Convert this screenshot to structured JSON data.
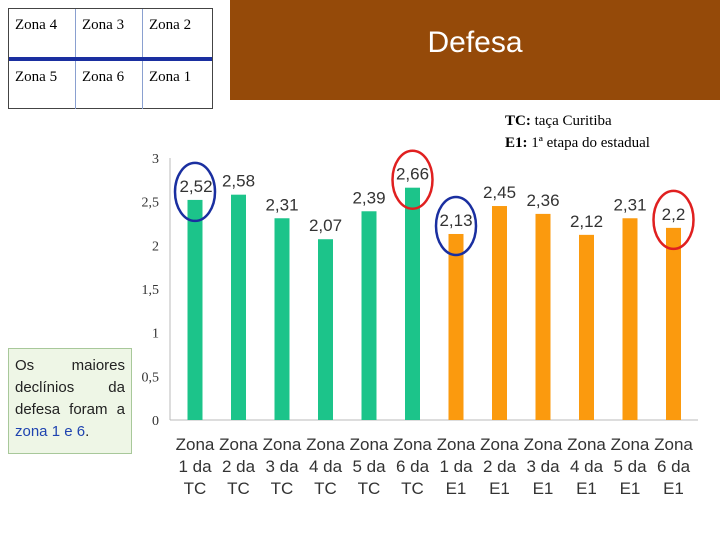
{
  "zone_grid": {
    "top_row": [
      "Zona 4",
      "Zona 3",
      "Zona 2"
    ],
    "bottom_row": [
      "Zona 5",
      "Zona 6",
      "Zona 1"
    ]
  },
  "banner": {
    "title": "Defesa",
    "color": "#954a09"
  },
  "legend_note": {
    "line1_key": "TC:",
    "line1_text": "taça Curitiba",
    "line2_key": "E1:",
    "line2_text": "1ª etapa do estadual"
  },
  "callout": {
    "text_before": "Os maiores declínios da defesa foram a ",
    "highlight": "zona 1 e 6",
    "text_after": "."
  },
  "chart_data": {
    "type": "bar",
    "categories": [
      "Zona 1 da TC",
      "Zona 2 da TC",
      "Zona 3 da TC",
      "Zona 4 da TC",
      "Zona 5 da TC",
      "Zona 6 da TC",
      "Zona 1 da E1",
      "Zona 2 da E1",
      "Zona 3 da E1",
      "Zona 4 da E1",
      "Zona 5 da E1",
      "Zona 6 da E1"
    ],
    "category_lines": [
      [
        "Zona",
        "1 da",
        "TC"
      ],
      [
        "Zona",
        "2 da",
        "TC"
      ],
      [
        "Zona",
        "3 da",
        "TC"
      ],
      [
        "Zona",
        "4 da",
        "TC"
      ],
      [
        "Zona",
        "5 da",
        "TC"
      ],
      [
        "Zona",
        "6 da",
        "TC"
      ],
      [
        "Zona",
        "1 da",
        "E1"
      ],
      [
        "Zona",
        "2 da",
        "E1"
      ],
      [
        "Zona",
        "3 da",
        "E1"
      ],
      [
        "Zona",
        "4 da",
        "E1"
      ],
      [
        "Zona",
        "5 da",
        "E1"
      ],
      [
        "Zona",
        "6 da",
        "E1"
      ]
    ],
    "values": [
      2.52,
      2.58,
      2.31,
      2.07,
      2.39,
      2.66,
      2.13,
      2.45,
      2.36,
      2.12,
      2.31,
      2.2
    ],
    "value_labels": [
      "2,52",
      "2,58",
      "2,31",
      "2,07",
      "2,39",
      "2,66",
      "2,13",
      "2,45",
      "2,36",
      "2,12",
      "2,31",
      "2,2"
    ],
    "colors": [
      "#1cc48a",
      "#1cc48a",
      "#1cc48a",
      "#1cc48a",
      "#1cc48a",
      "#1cc48a",
      "#fb9a0e",
      "#fb9a0e",
      "#fb9a0e",
      "#fb9a0e",
      "#fb9a0e",
      "#fb9a0e"
    ],
    "ylim": [
      0,
      3
    ],
    "y_ticks": [
      0,
      0.5,
      1,
      1.5,
      2,
      2.5,
      3
    ],
    "y_tick_labels": [
      "0",
      "0,5",
      "1",
      "1,5",
      "2",
      "2,5",
      "3"
    ],
    "grid": false,
    "annotations": [
      {
        "type": "circle",
        "bar_index": 0,
        "color": "#1a2fa0"
      },
      {
        "type": "circle",
        "bar_index": 5,
        "color": "#e02020"
      },
      {
        "type": "circle",
        "bar_index": 6,
        "color": "#1a2fa0"
      },
      {
        "type": "circle",
        "bar_index": 11,
        "color": "#e02020"
      }
    ]
  }
}
